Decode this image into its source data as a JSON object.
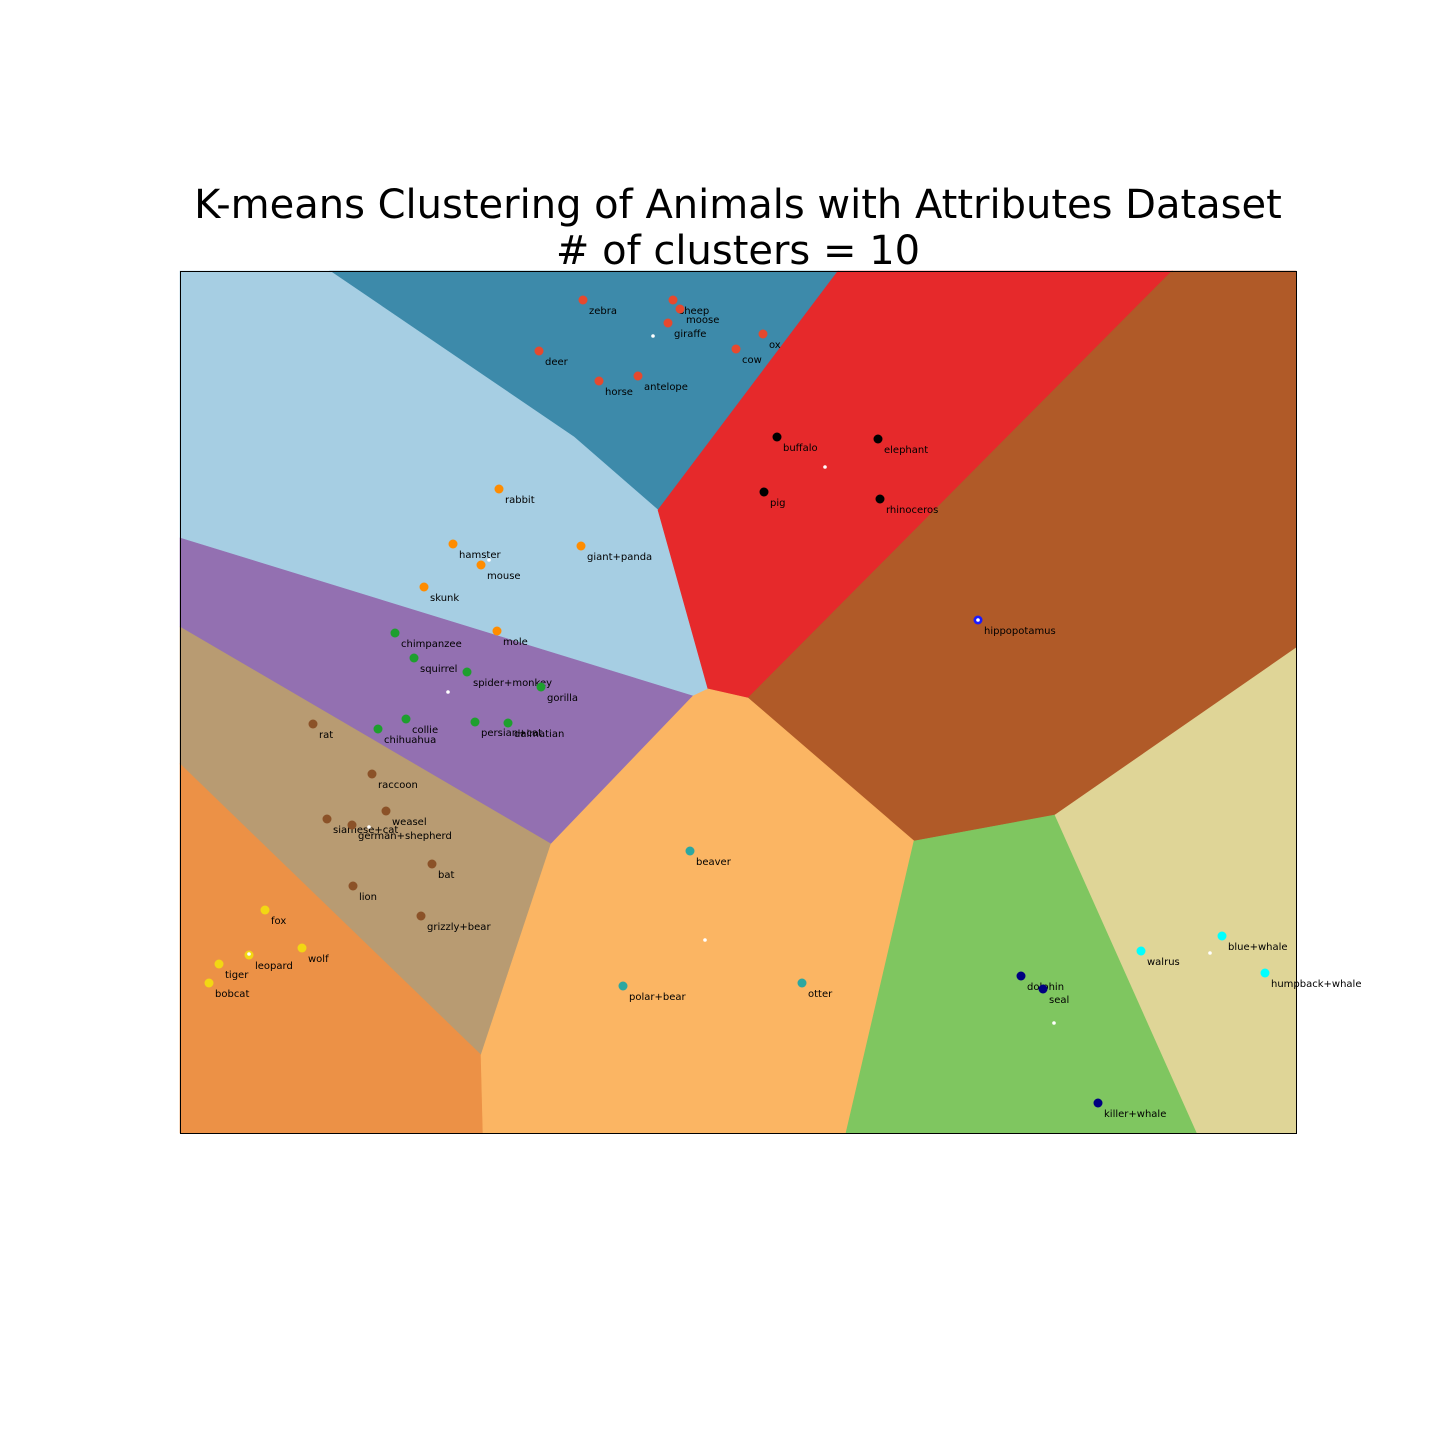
{
  "chart_data": {
    "type": "scatter",
    "title_lines": [
      "K-means Clustering of Animals with Attributes Dataset",
      "# of clusters = 10"
    ],
    "xlim": [
      0,
      1116
    ],
    "ylim": [
      0,
      862
    ],
    "axes_ticks": "none",
    "grid": false,
    "regions": [
      {
        "id": "r1",
        "color": "#3d8aaa",
        "polygon": [
          [
            150,
            0
          ],
          [
            658,
            0
          ],
          [
            478,
            239
          ],
          [
            394,
            166
          ]
        ]
      },
      {
        "id": "r2",
        "color": "#a6cee3",
        "polygon": [
          [
            0,
            0
          ],
          [
            150,
            0
          ],
          [
            394,
            166
          ],
          [
            478,
            239
          ],
          [
            528,
            418
          ],
          [
            513,
            425
          ],
          [
            0,
            267
          ]
        ]
      },
      {
        "id": "r3",
        "color": "#e6292b",
        "polygon": [
          [
            658,
            0
          ],
          [
            992,
            0
          ],
          [
            568,
            427
          ],
          [
            528,
            418
          ],
          [
            478,
            239
          ]
        ]
      },
      {
        "id": "r4",
        "color": "#b05a28",
        "polygon": [
          [
            992,
            0
          ],
          [
            1116,
            0
          ],
          [
            1116,
            377
          ],
          [
            875,
            544
          ],
          [
            734,
            570
          ],
          [
            568,
            427
          ]
        ]
      },
      {
        "id": "r5",
        "color": "#9370b1",
        "polygon": [
          [
            0,
            267
          ],
          [
            513,
            425
          ],
          [
            371,
            573
          ],
          [
            0,
            356
          ]
        ]
      },
      {
        "id": "r6",
        "color": "#b89b72",
        "polygon": [
          [
            0,
            356
          ],
          [
            371,
            573
          ],
          [
            301,
            784
          ],
          [
            0,
            493
          ]
        ]
      },
      {
        "id": "r7",
        "color": "#ec9146",
        "polygon": [
          [
            0,
            493
          ],
          [
            301,
            784
          ],
          [
            303,
            862
          ],
          [
            0,
            862
          ]
        ]
      },
      {
        "id": "r8",
        "color": "#fbb563",
        "polygon": [
          [
            513,
            425
          ],
          [
            528,
            418
          ],
          [
            568,
            427
          ],
          [
            734,
            570
          ],
          [
            666,
            862
          ],
          [
            303,
            862
          ],
          [
            301,
            784
          ],
          [
            371,
            573
          ]
        ]
      },
      {
        "id": "r9",
        "color": "#7fc660",
        "polygon": [
          [
            734,
            570
          ],
          [
            875,
            544
          ],
          [
            1017,
            862
          ],
          [
            666,
            862
          ]
        ]
      },
      {
        "id": "r10",
        "color": "#dfd597",
        "polygon": [
          [
            875,
            544
          ],
          [
            1116,
            377
          ],
          [
            1116,
            862
          ],
          [
            1017,
            862
          ]
        ]
      }
    ],
    "clusters": [
      {
        "color": "#e6492e",
        "centroid": [
          473,
          65
        ],
        "points": [
          {
            "label": "zebra",
            "x": 403,
            "y": 29
          },
          {
            "label": "sheep",
            "x": 493,
            "y": 29
          },
          {
            "label": "moose",
            "x": 500,
            "y": 38
          },
          {
            "label": "giraffe",
            "x": 488,
            "y": 52
          },
          {
            "label": "ox",
            "x": 583,
            "y": 63
          },
          {
            "label": "cow",
            "x": 556,
            "y": 78
          },
          {
            "label": "deer",
            "x": 359,
            "y": 80
          },
          {
            "label": "horse",
            "x": 419,
            "y": 110
          },
          {
            "label": "antelope",
            "x": 458,
            "y": 105
          }
        ]
      },
      {
        "color": "#000000",
        "centroid": [
          645,
          196
        ],
        "points": [
          {
            "label": "buffalo",
            "x": 597,
            "y": 166
          },
          {
            "label": "elephant",
            "x": 698,
            "y": 168
          },
          {
            "label": "pig",
            "x": 584,
            "y": 221
          },
          {
            "label": "rhinoceros",
            "x": 700,
            "y": 228
          }
        ]
      },
      {
        "color": "#ff8c00",
        "centroid": [
          309,
          289
        ],
        "points": [
          {
            "label": "rabbit",
            "x": 319,
            "y": 218
          },
          {
            "label": "hamster",
            "x": 273,
            "y": 273
          },
          {
            "label": "giant+panda",
            "x": 401,
            "y": 275
          },
          {
            "label": "mouse",
            "x": 301,
            "y": 294
          },
          {
            "label": "skunk",
            "x": 244,
            "y": 316
          },
          {
            "label": "mole",
            "x": 317,
            "y": 360
          }
        ]
      },
      {
        "color": "#1a1aff",
        "centroid": [
          798,
          349
        ],
        "points": [
          {
            "label": "hippopotamus",
            "x": 798,
            "y": 349
          }
        ]
      },
      {
        "color": "#1e9f2e",
        "centroid": [
          268,
          421
        ],
        "points": [
          {
            "label": "chimpanzee",
            "x": 215,
            "y": 362
          },
          {
            "label": "squirrel",
            "x": 234,
            "y": 387
          },
          {
            "label": "spider+monkey",
            "x": 287,
            "y": 401
          },
          {
            "label": "gorilla",
            "x": 361,
            "y": 416
          },
          {
            "label": "collie",
            "x": 226,
            "y": 448
          },
          {
            "label": "chihuahua",
            "x": 198,
            "y": 458
          },
          {
            "label": "persian+cat",
            "x": 295,
            "y": 451
          },
          {
            "label": "dalmatian",
            "x": 328,
            "y": 452
          }
        ]
      },
      {
        "color": "#8b5228",
        "centroid": [
          189,
          556
        ],
        "points": [
          {
            "label": "rat",
            "x": 133,
            "y": 453
          },
          {
            "label": "raccoon",
            "x": 192,
            "y": 503
          },
          {
            "label": "siamese+cat",
            "x": 147,
            "y": 548
          },
          {
            "label": "weasel",
            "x": 206,
            "y": 540
          },
          {
            "label": "german+shepherd",
            "x": 172,
            "y": 554
          },
          {
            "label": "bat",
            "x": 252,
            "y": 593
          },
          {
            "label": "lion",
            "x": 173,
            "y": 615
          },
          {
            "label": "grizzly+bear",
            "x": 241,
            "y": 645
          }
        ]
      },
      {
        "color": "#2ca7a1",
        "centroid": [
          525,
          669
        ],
        "points": [
          {
            "label": "beaver",
            "x": 510,
            "y": 580
          },
          {
            "label": "polar+bear",
            "x": 443,
            "y": 715
          },
          {
            "label": "otter",
            "x": 622,
            "y": 712
          }
        ]
      },
      {
        "color": "#f2d713",
        "centroid": [
          69,
          683
        ],
        "points": [
          {
            "label": "fox",
            "x": 85,
            "y": 639
          },
          {
            "label": "wolf",
            "x": 122,
            "y": 677
          },
          {
            "label": "leopard",
            "x": 69,
            "y": 684
          },
          {
            "label": "tiger",
            "x": 39,
            "y": 693
          },
          {
            "label": "bobcat",
            "x": 29,
            "y": 712
          }
        ]
      },
      {
        "color": "#000080",
        "centroid": [
          874,
          752
        ],
        "points": [
          {
            "label": "dolphin",
            "x": 841,
            "y": 705
          },
          {
            "label": "seal",
            "x": 863,
            "y": 718
          },
          {
            "label": "killer+whale",
            "x": 918,
            "y": 832
          }
        ]
      },
      {
        "color": "#00ffff",
        "centroid": [
          1030,
          682
        ],
        "points": [
          {
            "label": "blue+whale",
            "x": 1042,
            "y": 665
          },
          {
            "label": "walrus",
            "x": 961,
            "y": 680
          },
          {
            "label": "humpback+whale",
            "x": 1085,
            "y": 702
          }
        ]
      }
    ]
  }
}
